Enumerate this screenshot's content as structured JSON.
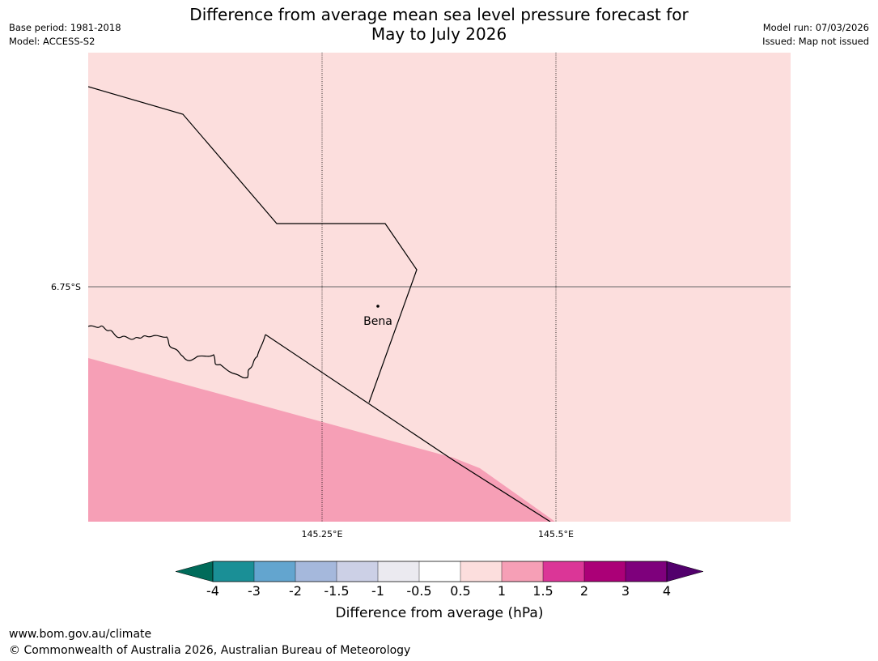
{
  "title": {
    "line1": "Difference from average mean sea level pressure forecast for",
    "line2": "May to July 2026"
  },
  "meta": {
    "base_period": "Base period: 1981-2018",
    "model": "Model: ACCESS-S2",
    "model_run": "Model run: 07/03/2026",
    "issued": "Issued: Map not issued"
  },
  "map": {
    "latitude_labels": [
      "6.75°S"
    ],
    "longitude_labels": [
      "145.25°E",
      "145.5°E"
    ],
    "places": [
      {
        "name": "Bena"
      }
    ],
    "shading": {
      "background_category": "0.5 to 1",
      "lower_region_category": "1 to 1.5"
    }
  },
  "colorbar": {
    "title": "Difference from average (hPa)",
    "ticks": [
      "-4",
      "-3",
      "-2",
      "-1.5",
      "-1",
      "-0.5",
      "0.5",
      "1",
      "1.5",
      "2",
      "3",
      "4"
    ],
    "colors": {
      "below_min": "#006b5a",
      "bins": [
        "#1a8f96",
        "#63a5cf",
        "#a5b8dc",
        "#ccd0e6",
        "#ebeaf0",
        "#ffffff",
        "#fcdedd",
        "#f69fb6",
        "#db3697",
        "#ab0077",
        "#7e007c"
      ],
      "above_max": "#52006c"
    }
  },
  "footer": {
    "url": "www.bom.gov.au/climate",
    "copyright": "© Commonwealth of Australia 2026, Australian Bureau of Meteorology"
  }
}
